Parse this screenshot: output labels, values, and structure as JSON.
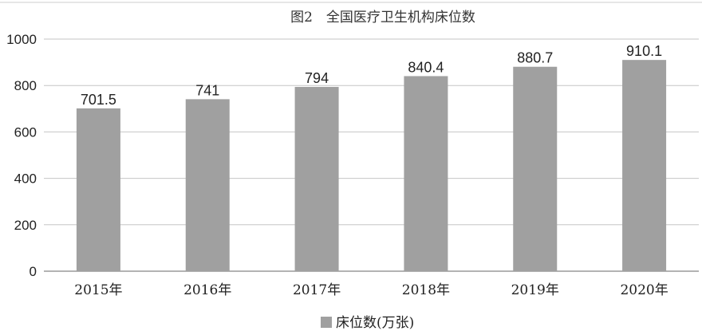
{
  "chart_data": {
    "type": "bar",
    "title": "图2　全国医疗卫生机构床位数",
    "categories": [
      "2015年",
      "2016年",
      "2017年",
      "2018年",
      "2019年",
      "2020年"
    ],
    "series": [
      {
        "name": "床位数(万张)",
        "values": [
          701.5,
          741,
          794,
          840.4,
          880.7,
          910.1
        ]
      }
    ],
    "data_labels": [
      "701.5",
      "741",
      "794",
      "840.4",
      "880.7",
      "910.1"
    ],
    "ylim": [
      0,
      1000
    ],
    "yticks": [
      0,
      200,
      400,
      600,
      800,
      1000
    ],
    "ytick_labels": [
      "0",
      "200",
      "400",
      "600",
      "800",
      "1000"
    ],
    "grid": true,
    "legend_position": "bottom",
    "colors": {
      "bar": "#a0a0a0",
      "grid": "#c6c6c6",
      "axis": "#9a9a9a"
    }
  }
}
